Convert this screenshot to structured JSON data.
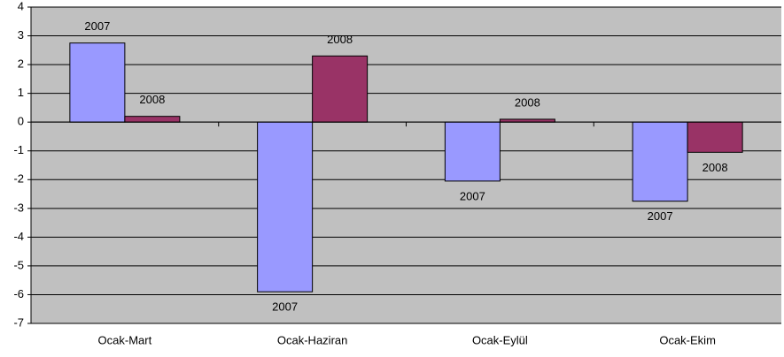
{
  "chart_data": {
    "type": "bar",
    "categories": [
      "Ocak-Mart",
      "Ocak-Haziran",
      "Ocak-Eylül",
      "Ocak-Ekim"
    ],
    "series": [
      {
        "name": "2007",
        "color": "#9999ff",
        "values": [
          2.75,
          -5.9,
          -2.05,
          -2.75
        ]
      },
      {
        "name": "2008",
        "color": "#993366",
        "values": [
          0.2,
          2.3,
          0.1,
          -1.05
        ]
      }
    ],
    "ylim": [
      -7,
      4
    ],
    "yticks": [
      -7,
      -6,
      -5,
      -4,
      -3,
      -2,
      -1,
      0,
      1,
      2,
      3,
      4
    ],
    "grid": true
  }
}
